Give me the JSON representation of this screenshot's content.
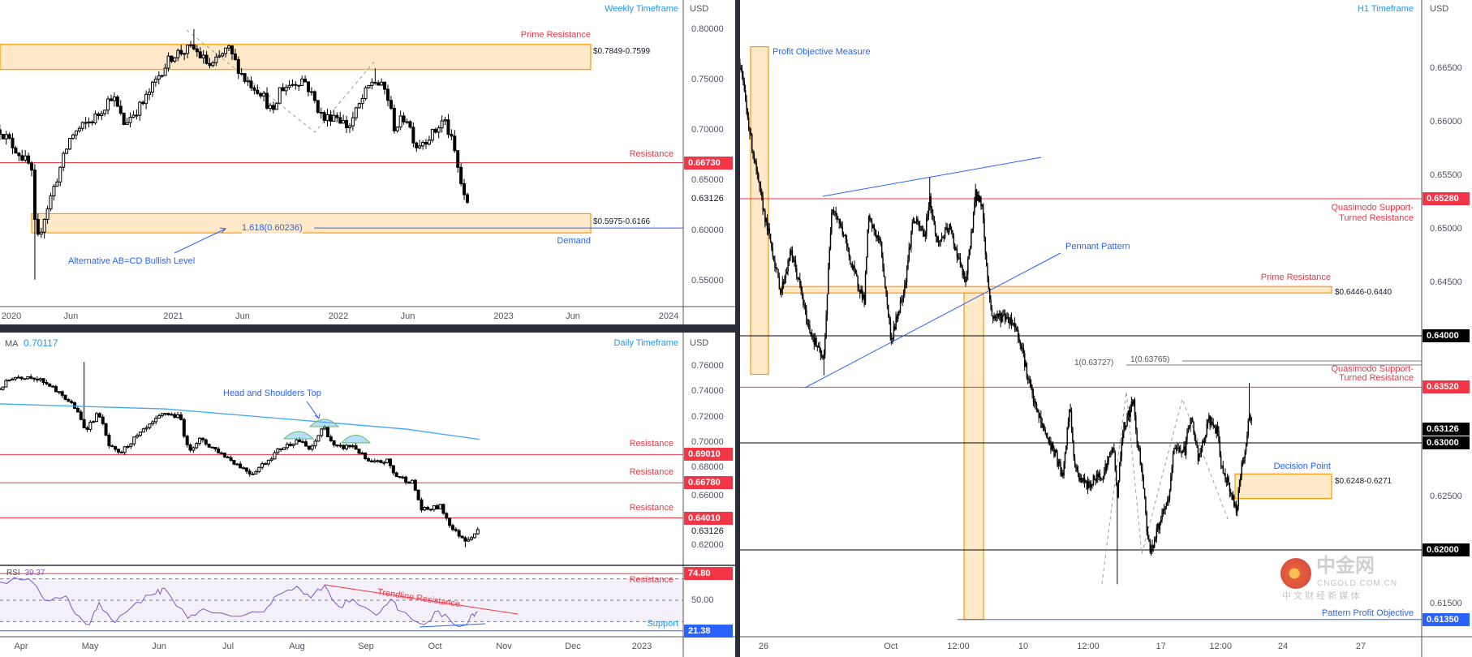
{
  "weekly": {
    "title": "Weekly Timeframe",
    "currency": "USD",
    "price_ticks": [
      "0.80000",
      "0.75000",
      "0.70000",
      "0.65000",
      "0.60000",
      "0.55000"
    ],
    "price_tick_values": [
      0.8,
      0.75,
      0.7,
      0.65,
      0.6,
      0.55
    ],
    "last_price": "0.63126",
    "last_price_value": 0.63126,
    "time_ticks": [
      {
        "label": "2020",
        "t": 2020.0
      },
      {
        "label": "Jun",
        "t": 2020.38
      },
      {
        "label": "2021",
        "t": 2021.0
      },
      {
        "label": "Jun",
        "t": 2021.42
      },
      {
        "label": "2022",
        "t": 2022.0
      },
      {
        "label": "Jun",
        "t": 2022.42
      },
      {
        "label": "2023",
        "t": 2023.0
      },
      {
        "label": "Jun",
        "t": 2023.42
      },
      {
        "label": "2024",
        "t": 2024.0
      }
    ],
    "badges": [
      {
        "label": "0.66730",
        "value": 0.6673,
        "color": "#f23645"
      }
    ],
    "labels": {
      "prime_resistance": "Prime Resistance",
      "prime_range": "$0.7849-0.7599",
      "resistance": "Resistance",
      "demand_range": "$0.5975-0.6166",
      "demand": "Demand",
      "fib": "1.618(0.60236)",
      "abcd": "Alternative AB=CD Bullish Level"
    },
    "zones": {
      "prime": [
        0.7599,
        0.7849
      ],
      "demand": [
        0.5975,
        0.6166
      ]
    },
    "levels": {
      "resistance": 0.6673,
      "fib": 0.60236
    }
  },
  "daily": {
    "title": "Daily Timeframe",
    "currency": "USD",
    "ma_label": "MA",
    "ma_value": "0.70117",
    "price_ticks": [
      "0.76000",
      "0.74000",
      "0.72000",
      "0.70000",
      "0.68000",
      "0.66000",
      "0.62000"
    ],
    "price_tick_values": [
      0.76,
      0.74,
      0.72,
      0.7,
      0.68,
      0.66,
      0.62
    ],
    "last_price": "0.63126",
    "last_price_value": 0.63126,
    "badges": [
      {
        "label": "0.69010",
        "value": 0.6901,
        "color": "#f23645"
      },
      {
        "label": "0.66780",
        "value": 0.6678,
        "color": "#f23645"
      },
      {
        "label": "0.64010",
        "value": 0.6401,
        "color": "#f23645"
      }
    ],
    "labels": {
      "hs": "Head and Shoulders Top",
      "res1": "Resistance",
      "res2": "Resistance",
      "res3": "Resistance"
    },
    "levels": [
      0.6901,
      0.6678,
      0.6401
    ]
  },
  "rsi": {
    "label": "RSI",
    "value": "39.37",
    "tick_50": "50.00",
    "badges": [
      {
        "label": "74.80",
        "value": 74.8,
        "color": "#f23645"
      },
      {
        "label": "21.38",
        "value": 21.38,
        "color": "#2962ff"
      }
    ],
    "labels": {
      "trendline": "Trendline Resistance",
      "resistance": "Resistance",
      "support": "Support"
    },
    "time_ticks": [
      {
        "label": "Apr",
        "t": 4
      },
      {
        "label": "May",
        "t": 5
      },
      {
        "label": "Jun",
        "t": 6
      },
      {
        "label": "Jul",
        "t": 7
      },
      {
        "label": "Aug",
        "t": 8
      },
      {
        "label": "Sep",
        "t": 9
      },
      {
        "label": "Oct",
        "t": 10
      },
      {
        "label": "Nov",
        "t": 11
      },
      {
        "label": "Dec",
        "t": 12
      },
      {
        "label": "2023",
        "t": 13
      }
    ]
  },
  "h1": {
    "title": "H1 Timeframe",
    "currency": "USD",
    "price_ticks": [
      "0.66500",
      "0.66000",
      "0.65500",
      "0.65000",
      "0.64500",
      "0.62500",
      "0.61500"
    ],
    "price_tick_values": [
      0.665,
      0.66,
      0.655,
      0.65,
      0.645,
      0.625,
      0.615
    ],
    "badges": [
      {
        "label": "0.65280",
        "value": 0.6528,
        "color": "#f23645"
      },
      {
        "label": "0.64000",
        "value": 0.64,
        "color": "#000000"
      },
      {
        "label": "0.63520",
        "value": 0.6352,
        "color": "#f23645"
      },
      {
        "label": "0.63126",
        "value": 0.63126,
        "color": "#000000"
      },
      {
        "label": "0.63000",
        "value": 0.63,
        "color": "#000000"
      },
      {
        "label": "0.62000",
        "value": 0.62,
        "color": "#000000"
      },
      {
        "label": "0.61350",
        "value": 0.6135,
        "color": "#2962ff"
      }
    ],
    "time_ticks": [
      {
        "label": "26",
        "t": 0
      },
      {
        "label": "Oct",
        "t": 4.9
      },
      {
        "label": "12:00",
        "t": 7.5
      },
      {
        "label": "10",
        "t": 10
      },
      {
        "label": "12:00",
        "t": 12.5
      },
      {
        "label": "17",
        "t": 15.3
      },
      {
        "label": "12:00",
        "t": 17.6
      },
      {
        "label": "24",
        "t": 20
      },
      {
        "label": "27",
        "t": 23
      }
    ],
    "labels": {
      "profit_objective": "Profit Objective Measure",
      "pennant": "Pennant Pattern",
      "qm1_line1": "Quasimodo Support-",
      "qm1_line2": "Turned Resistance",
      "prime_resistance": "Prime Resistance",
      "prime_range": "$0.6446-0.6440",
      "fib1": "1(0.63727)",
      "fib2": "1(0.63765)",
      "qm2_line1": "Quasimodo Support-",
      "qm2_line2": "Turned Resistance",
      "decision": "Decision Point",
      "decision_range": "$0.6248-0.6271",
      "pattern_objective": "Pattern Profit Objective"
    },
    "levels": {
      "qm1": 0.6528,
      "l640": 0.64,
      "fib1": 0.63727,
      "fib2": 0.63765,
      "qm2": 0.6352,
      "l630": 0.63,
      "l620": 0.62,
      "objective": 0.6135
    },
    "zones": {
      "prime": [
        0.644,
        0.6446
      ],
      "decision": [
        0.6248,
        0.6271
      ],
      "measure1": [
        0.6364,
        0.667
      ],
      "measure2": [
        0.6135,
        0.644
      ]
    }
  },
  "watermark": {
    "logo_text": "中金网",
    "domain": "CNGOLD.COM.CN",
    "tagline": "中 文 财 经 新 媒 体"
  },
  "colors": {
    "red": "#f23645",
    "blue": "#2962ff",
    "ma": "#42a5f5",
    "zone_border": "#ff9800",
    "zone_fill": "#ffe9c9",
    "rsi": "#7e57c2"
  },
  "chart_data": [
    {
      "type": "candlestick",
      "title": "Weekly Timeframe",
      "x_unit": "decimal year",
      "ylabel": "USD",
      "ylim": [
        0.53,
        0.81
      ],
      "closes": [
        [
          2019.95,
          0.7
        ],
        [
          2020.14,
          0.662
        ],
        [
          2020.17,
          0.585
        ],
        [
          2020.22,
          0.614
        ],
        [
          2020.38,
          0.694
        ],
        [
          2020.54,
          0.714
        ],
        [
          2020.63,
          0.735
        ],
        [
          2020.7,
          0.706
        ],
        [
          2020.82,
          0.727
        ],
        [
          2020.93,
          0.759
        ],
        [
          2021.0,
          0.775
        ],
        [
          2021.12,
          0.781
        ],
        [
          2021.23,
          0.762
        ],
        [
          2021.33,
          0.781
        ],
        [
          2021.43,
          0.751
        ],
        [
          2021.53,
          0.738
        ],
        [
          2021.61,
          0.714
        ],
        [
          2021.64,
          0.74
        ],
        [
          2021.79,
          0.751
        ],
        [
          2021.91,
          0.71
        ],
        [
          2021.98,
          0.716
        ],
        [
          2022.06,
          0.702
        ],
        [
          2022.15,
          0.732
        ],
        [
          2022.21,
          0.75
        ],
        [
          2022.29,
          0.738
        ],
        [
          2022.34,
          0.702
        ],
        [
          2022.41,
          0.714
        ],
        [
          2022.47,
          0.684
        ],
        [
          2022.58,
          0.697
        ],
        [
          2022.64,
          0.711
        ],
        [
          2022.7,
          0.681
        ],
        [
          2022.77,
          0.625
        ],
        [
          2022.79,
          0.631
        ]
      ],
      "spikes": [
        [
          2020.17,
          0.551
        ],
        [
          2021.12,
          0.8
        ],
        [
          2022.23,
          0.761
        ]
      ]
    },
    {
      "type": "candlestick",
      "title": "Daily Timeframe",
      "x_unit": "decimal month 2022",
      "ylabel": "USD",
      "ylim": [
        0.605,
        0.77
      ],
      "closes": [
        [
          3.69,
          0.742
        ],
        [
          3.87,
          0.751
        ],
        [
          4.16,
          0.752
        ],
        [
          4.28,
          0.748
        ],
        [
          4.6,
          0.737
        ],
        [
          4.78,
          0.727
        ],
        [
          4.93,
          0.71
        ],
        [
          5.13,
          0.723
        ],
        [
          5.27,
          0.697
        ],
        [
          5.42,
          0.69
        ],
        [
          5.59,
          0.7
        ],
        [
          5.81,
          0.71
        ],
        [
          6.08,
          0.723
        ],
        [
          6.31,
          0.719
        ],
        [
          6.42,
          0.693
        ],
        [
          6.58,
          0.702
        ],
        [
          6.85,
          0.693
        ],
        [
          7.12,
          0.683
        ],
        [
          7.34,
          0.675
        ],
        [
          7.56,
          0.685
        ],
        [
          7.74,
          0.694
        ],
        [
          8.01,
          0.702
        ],
        [
          8.2,
          0.693
        ],
        [
          8.38,
          0.713
        ],
        [
          8.55,
          0.695
        ],
        [
          8.82,
          0.697
        ],
        [
          9.05,
          0.683
        ],
        [
          9.32,
          0.685
        ],
        [
          9.41,
          0.674
        ],
        [
          9.68,
          0.668
        ],
        [
          9.81,
          0.646
        ],
        [
          10.08,
          0.649
        ],
        [
          10.27,
          0.63
        ],
        [
          10.45,
          0.623
        ],
        [
          10.65,
          0.631
        ]
      ],
      "spikes": [
        [
          4.93,
          0.763
        ],
        [
          10.42,
          0.617
        ]
      ],
      "ma": [
        [
          3.69,
          0.73
        ],
        [
          6.1,
          0.726
        ],
        [
          8.3,
          0.716
        ],
        [
          9.6,
          0.71
        ],
        [
          10.65,
          0.702
        ]
      ]
    },
    {
      "type": "line",
      "title": "RSI",
      "x_unit": "decimal month 2022",
      "ylim": [
        15,
        80
      ],
      "values": [
        [
          3.69,
          67
        ],
        [
          4.11,
          70
        ],
        [
          4.34,
          50
        ],
        [
          4.65,
          54
        ],
        [
          4.79,
          37
        ],
        [
          4.99,
          27
        ],
        [
          5.13,
          48
        ],
        [
          5.36,
          29
        ],
        [
          5.67,
          48
        ],
        [
          5.95,
          56
        ],
        [
          6.08,
          61
        ],
        [
          6.42,
          33
        ],
        [
          6.64,
          42
        ],
        [
          7.18,
          35
        ],
        [
          7.52,
          39
        ],
        [
          7.72,
          55
        ],
        [
          8.0,
          63
        ],
        [
          8.2,
          52
        ],
        [
          8.4,
          64
        ],
        [
          8.61,
          44
        ],
        [
          8.81,
          51
        ],
        [
          9.15,
          36
        ],
        [
          9.36,
          51
        ],
        [
          9.49,
          40
        ],
        [
          9.84,
          27
        ],
        [
          10.05,
          40
        ],
        [
          10.25,
          29
        ],
        [
          10.46,
          27
        ],
        [
          10.52,
          36
        ],
        [
          10.62,
          39.37
        ]
      ],
      "bands": [
        30,
        50,
        70
      ]
    },
    {
      "type": "candlestick",
      "title": "H1 Timeframe",
      "x_unit": "trading days since Sep 26",
      "ylabel": "USD",
      "ylim": [
        0.611,
        0.669
      ],
      "closes": [
        [
          -0.91,
          0.6655
        ],
        [
          -0.81,
          0.6638
        ],
        [
          -0.5,
          0.6585
        ],
        [
          -0.19,
          0.654
        ],
        [
          0.13,
          0.6502
        ],
        [
          0.28,
          0.6486
        ],
        [
          0.66,
          0.6441
        ],
        [
          1.06,
          0.6479
        ],
        [
          1.38,
          0.6448
        ],
        [
          1.69,
          0.6411
        ],
        [
          2.31,
          0.6375
        ],
        [
          2.63,
          0.6524
        ],
        [
          3.09,
          0.6494
        ],
        [
          3.41,
          0.6464
        ],
        [
          3.88,
          0.6433
        ],
        [
          4.03,
          0.6509
        ],
        [
          4.5,
          0.6486
        ],
        [
          4.81,
          0.6418
        ],
        [
          4.91,
          0.6395
        ],
        [
          5.44,
          0.6448
        ],
        [
          5.75,
          0.6509
        ],
        [
          6.22,
          0.6494
        ],
        [
          6.38,
          0.653
        ],
        [
          6.69,
          0.6486
        ],
        [
          7.16,
          0.6501
        ],
        [
          7.53,
          0.647
        ],
        [
          7.78,
          0.6448
        ],
        [
          8.16,
          0.6532
        ],
        [
          8.41,
          0.6524
        ],
        [
          8.56,
          0.647
        ],
        [
          8.78,
          0.6418
        ],
        [
          9.34,
          0.6418
        ],
        [
          9.66,
          0.6411
        ],
        [
          9.97,
          0.6388
        ],
        [
          10.13,
          0.6365
        ],
        [
          10.44,
          0.6335
        ],
        [
          10.91,
          0.6305
        ],
        [
          11.22,
          0.629
        ],
        [
          11.53,
          0.6267
        ],
        [
          11.78,
          0.6335
        ],
        [
          12.0,
          0.6274
        ],
        [
          12.47,
          0.6259
        ],
        [
          12.78,
          0.6267
        ],
        [
          13.09,
          0.6272
        ],
        [
          13.47,
          0.6297
        ],
        [
          13.63,
          0.625
        ],
        [
          13.81,
          0.631
        ],
        [
          14.25,
          0.634
        ],
        [
          14.34,
          0.631
        ],
        [
          14.59,
          0.6272
        ],
        [
          14.75,
          0.6221
        ],
        [
          14.91,
          0.6198
        ],
        [
          15.19,
          0.6221
        ],
        [
          15.59,
          0.6246
        ],
        [
          15.81,
          0.6297
        ],
        [
          16.22,
          0.6292
        ],
        [
          16.44,
          0.6327
        ],
        [
          16.75,
          0.6284
        ],
        [
          17.16,
          0.6322
        ],
        [
          17.47,
          0.631
        ],
        [
          17.63,
          0.6277
        ],
        [
          17.88,
          0.6264
        ],
        [
          18.19,
          0.6236
        ],
        [
          18.41,
          0.6277
        ],
        [
          18.56,
          0.6297
        ],
        [
          18.72,
          0.633
        ],
        [
          18.81,
          0.63126
        ]
      ],
      "spikes": [
        [
          13.63,
          0.6168
        ],
        [
          6.38,
          0.6548
        ],
        [
          18.72,
          0.6356
        ],
        [
          2.31,
          0.6363
        ],
        [
          8.16,
          0.6542
        ]
      ]
    }
  ]
}
